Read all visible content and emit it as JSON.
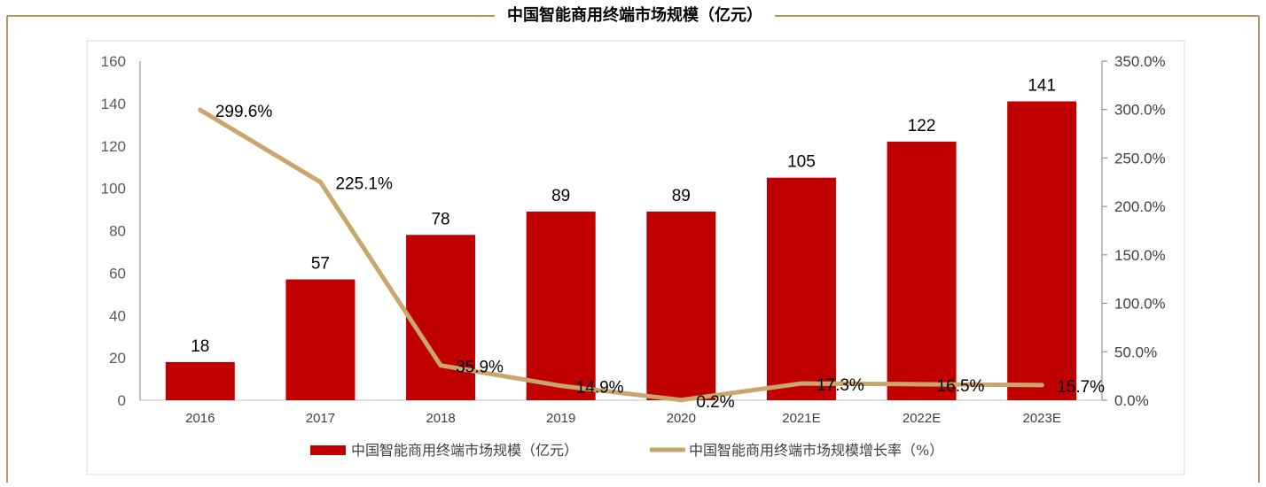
{
  "chart_data": {
    "type": "bar",
    "title": "中国智能商用终端市场规模（亿元）",
    "categories": [
      "2016",
      "2017",
      "2018",
      "2019",
      "2020",
      "2021E",
      "2022E",
      "2023E"
    ],
    "series": [
      {
        "name": "中国智能商用终端市场规模（亿元）",
        "type": "bar",
        "axis": "left",
        "values": [
          18,
          57,
          78,
          89,
          89,
          105,
          122,
          141
        ],
        "labels": [
          "18",
          "57",
          "78",
          "89",
          "89",
          "105",
          "122",
          "141"
        ]
      },
      {
        "name": "中国智能商用终端市场规模增长率（%）",
        "type": "line",
        "axis": "right",
        "values": [
          299.6,
          225.1,
          35.9,
          14.9,
          0.2,
          17.3,
          16.5,
          15.7
        ],
        "labels": [
          "299.6%",
          "225.1%",
          "35.9%",
          "14.9%",
          "0.2%",
          "17.3%",
          "16.5%",
          "15.7%"
        ]
      }
    ],
    "y_left": {
      "ylim": [
        0,
        160
      ],
      "ticks": [
        "0",
        "20",
        "40",
        "60",
        "80",
        "100",
        "120",
        "140",
        "160"
      ]
    },
    "y_right": {
      "ylim": [
        0,
        350
      ],
      "ticks": [
        "0.0%",
        "50.0%",
        "100.0%",
        "150.0%",
        "200.0%",
        "250.0%",
        "300.0%",
        "350.0%"
      ]
    },
    "xlabel": "",
    "ylabel": "",
    "grid": false,
    "legend_position": "bottom",
    "colors": {
      "bar": "#c00000",
      "line": "#c9a66b",
      "frame": "#b8975a",
      "axis": "#7f7f7f",
      "text": "#000000"
    }
  }
}
